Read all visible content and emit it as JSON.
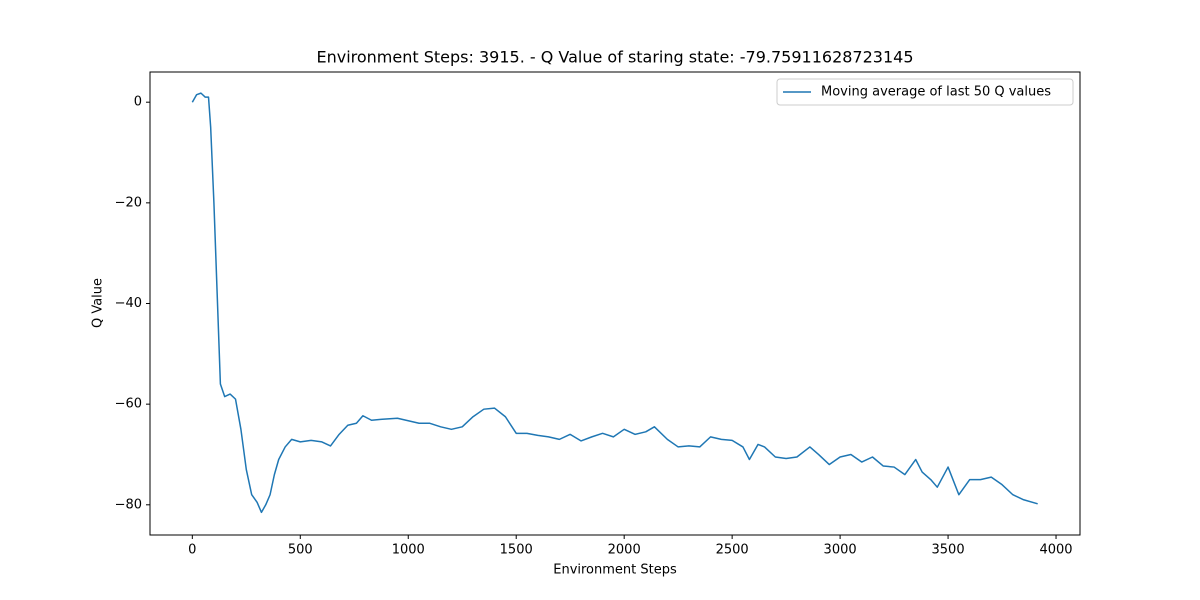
{
  "chart_data": {
    "type": "line",
    "title": "Environment Steps: 3915. - Q Value of staring state: -79.75911628723145",
    "x_label": "Environment Steps",
    "y_label": "Q Value",
    "x": [
      0,
      20,
      40,
      60,
      75,
      85,
      100,
      115,
      130,
      150,
      175,
      200,
      225,
      250,
      275,
      300,
      320,
      340,
      360,
      380,
      400,
      430,
      460,
      500,
      550,
      600,
      640,
      680,
      720,
      760,
      790,
      830,
      880,
      950,
      1000,
      1050,
      1100,
      1150,
      1200,
      1250,
      1300,
      1350,
      1400,
      1450,
      1500,
      1550,
      1600,
      1650,
      1700,
      1750,
      1800,
      1850,
      1900,
      1950,
      2000,
      2050,
      2100,
      2140,
      2200,
      2250,
      2300,
      2350,
      2400,
      2450,
      2500,
      2550,
      2580,
      2620,
      2650,
      2700,
      2750,
      2800,
      2860,
      2900,
      2950,
      3000,
      3050,
      3100,
      3150,
      3200,
      3250,
      3300,
      3350,
      3380,
      3420,
      3450,
      3500,
      3550,
      3600,
      3650,
      3700,
      3750,
      3800,
      3850,
      3915
    ],
    "series": [
      {
        "name": "Moving average of last 50 Q values",
        "color": "#1f77b4",
        "values": [
          0,
          1.5,
          1.8,
          1,
          1,
          -5,
          -20,
          -38,
          -56,
          -58.5,
          -58,
          -59,
          -65,
          -73,
          -78,
          -79.5,
          -81.5,
          -80,
          -78,
          -74,
          -71,
          -68.5,
          -67,
          -67.5,
          -67.2,
          -67.5,
          -68.3,
          -66,
          -64.2,
          -63.8,
          -62.3,
          -63.2,
          -63,
          -62.8,
          -63.3,
          -63.8,
          -63.8,
          -64.5,
          -65,
          -64.5,
          -62.5,
          -61,
          -60.8,
          -62.5,
          -65.8,
          -65.8,
          -66.2,
          -66.5,
          -67,
          -66,
          -67.3,
          -66.5,
          -65.8,
          -66.5,
          -65,
          -66,
          -65.5,
          -64.5,
          -67,
          -68.5,
          -68.3,
          -68.5,
          -66.5,
          -67,
          -67.2,
          -68.5,
          -71,
          -68,
          -68.5,
          -70.5,
          -70.8,
          -70.5,
          -68.5,
          -70,
          -72,
          -70.5,
          -70,
          -71.5,
          -70.5,
          -72.3,
          -72.5,
          -74,
          -71,
          -73.5,
          -75,
          -76.5,
          -72.5,
          -78,
          -75,
          -75,
          -74.5,
          -76,
          -78,
          -79,
          -79.8
        ]
      }
    ],
    "xlim": [
      -196,
      4111
    ],
    "ylim": [
      -86,
      6
    ],
    "xticks": [
      0,
      500,
      1000,
      1500,
      2000,
      2500,
      3000,
      3500,
      4000
    ],
    "yticks": [
      {
        "value": -80,
        "label": "−80"
      },
      {
        "value": -60,
        "label": "−60"
      },
      {
        "value": -40,
        "label": "−40"
      },
      {
        "value": -20,
        "label": "−20"
      },
      0
    ],
    "legend": "upper right",
    "grid": false
  }
}
